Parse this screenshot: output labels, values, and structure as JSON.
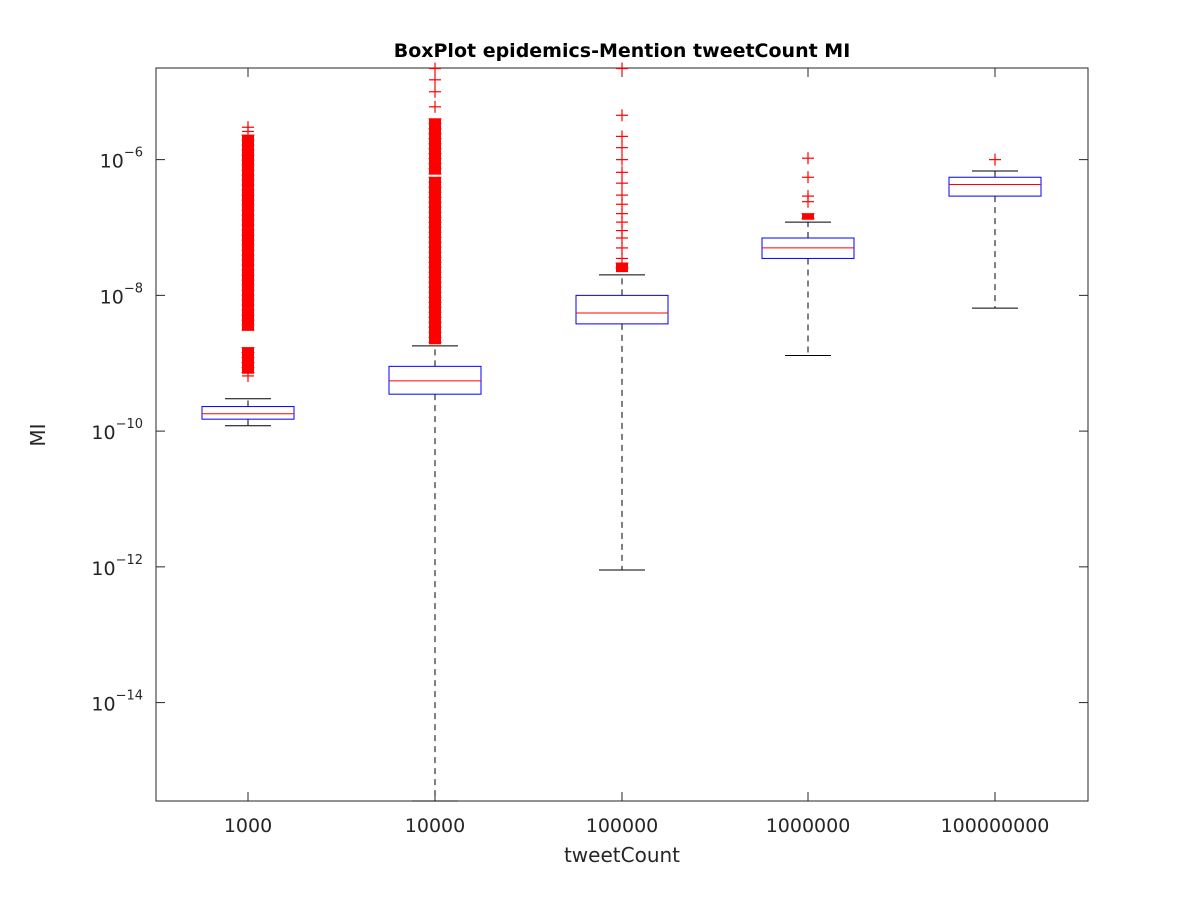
{
  "chart_data": {
    "type": "boxplot",
    "title": "BoxPlot epidemics-Mention tweetCount MI",
    "xlabel": "tweetCount",
    "ylabel": "MI",
    "yscale": "log",
    "ylim_log10": [
      -15.45,
      -4.65
    ],
    "yticks": [
      {
        "exp": -14,
        "base": "10",
        "sup": "−14"
      },
      {
        "exp": -12,
        "base": "10",
        "sup": "−12"
      },
      {
        "exp": -10,
        "base": "10",
        "sup": "−10"
      },
      {
        "exp": -8,
        "base": "10",
        "sup": "−8"
      },
      {
        "exp": -6,
        "base": "10",
        "sup": "−6"
      }
    ],
    "categories": [
      "1000",
      "10000",
      "100000",
      "1000000",
      "100000000"
    ],
    "colors": {
      "box": "#0000ff",
      "median": "#ff0000",
      "whisker": "#000000",
      "outlier": "#ff0000",
      "axis": "#262626"
    },
    "boxes": [
      {
        "category": "1000",
        "whisker_low": 1.2e-10,
        "q1": 1.5e-10,
        "median": 1.8e-10,
        "q3": 2.3e-10,
        "whisker_high": 3e-10,
        "outliers_sparse": [
          6.5e-10,
          3e-06,
          2.6e-06
        ],
        "outlier_bands": [
          [
            7e-10,
            1.7e-09
          ],
          [
            3e-09,
            2.3e-06
          ]
        ]
      },
      {
        "category": "10000",
        "whisker_low": 3e-16,
        "q1": 3.5e-10,
        "median": 5.5e-10,
        "q3": 9e-10,
        "whisker_high": 1.8e-09,
        "outliers_sparse": [
          2.2e-05,
          1.5e-05,
          1e-05,
          6e-06
        ],
        "outlier_bands": [
          [
            1.9e-09,
            5.5e-07
          ],
          [
            6e-07,
            4e-06
          ]
        ]
      },
      {
        "category": "100000",
        "whisker_low": 9e-13,
        "q1": 3.8e-09,
        "median": 5.5e-09,
        "q3": 1e-08,
        "whisker_high": 2e-08,
        "outliers_sparse": [
          3.5e-08,
          5e-08,
          7e-08,
          9e-08,
          1.2e-07,
          1.6e-07,
          2.2e-07,
          3e-07,
          4.5e-07,
          6.5e-07,
          1e-06,
          1.5e-06,
          2.2e-06,
          4.5e-06,
          2.2e-05
        ],
        "outlier_bands": [
          [
            2.2e-08,
            3e-08
          ]
        ]
      },
      {
        "category": "1000000",
        "whisker_low": 1.3e-09,
        "q1": 3.5e-08,
        "median": 5e-08,
        "q3": 7e-08,
        "whisker_high": 1.2e-07,
        "outliers_sparse": [
          2.4e-07,
          2.9e-07,
          5.5e-07,
          1.05e-06
        ],
        "outlier_bands": [
          [
            1.3e-07,
            1.6e-07
          ]
        ]
      },
      {
        "category": "100000000",
        "whisker_low": 6.5e-09,
        "q1": 2.9e-07,
        "median": 4.3e-07,
        "q3": 5.5e-07,
        "whisker_high": 6.8e-07,
        "outliers_sparse": [
          1e-06
        ],
        "outlier_bands": []
      }
    ]
  }
}
